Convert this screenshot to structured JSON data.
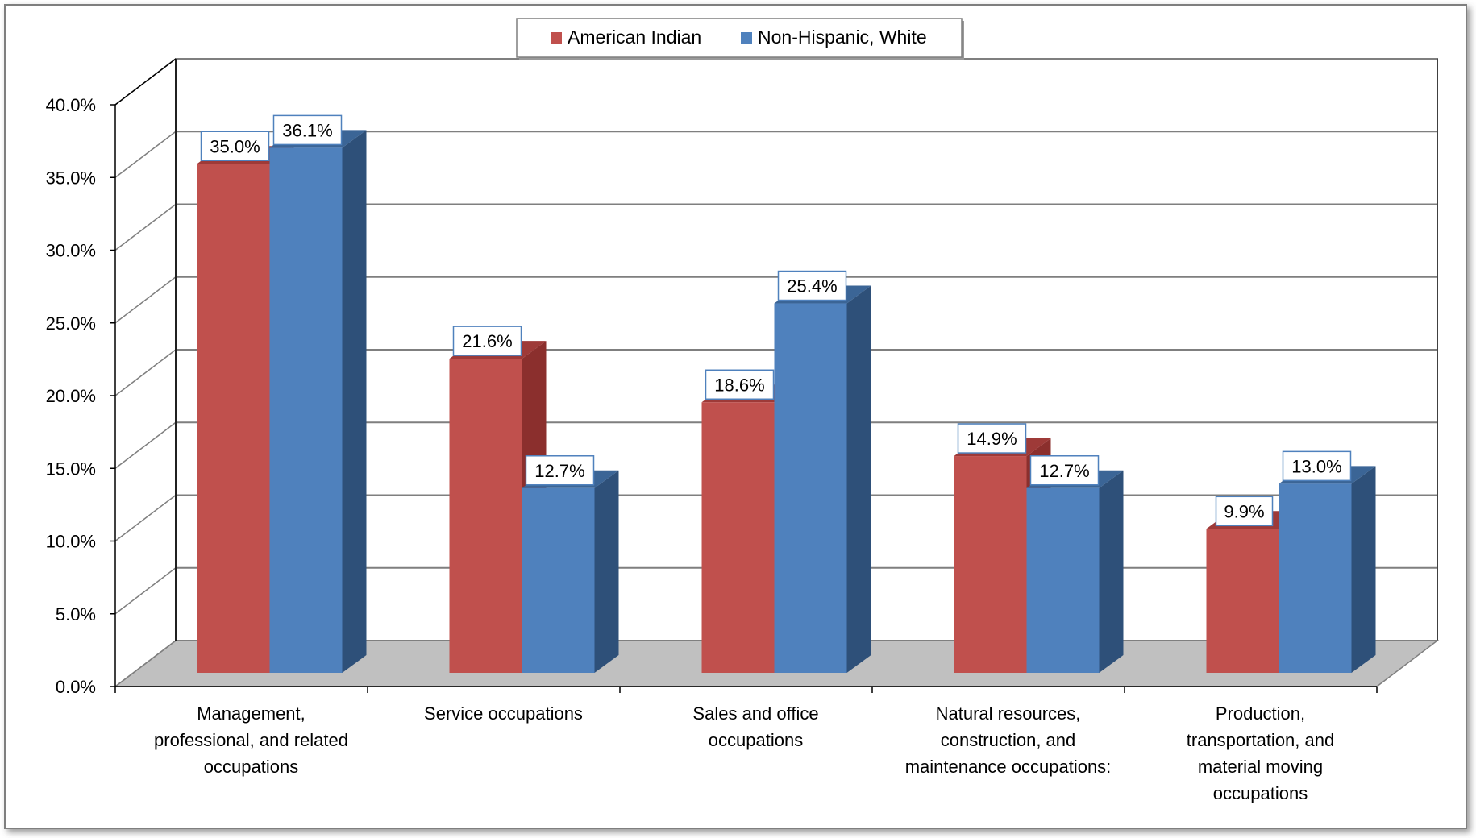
{
  "chart_data": {
    "type": "bar",
    "title": "",
    "xlabel": "",
    "ylabel": "",
    "ylim": [
      0,
      40
    ],
    "y_tick_step": 5,
    "y_tick_format": "percent_1dp",
    "grid": true,
    "three_d": true,
    "legend_position": "top",
    "categories": [
      [
        "Management,",
        "professional, and related",
        "occupations"
      ],
      [
        "Service occupations"
      ],
      [
        "Sales and office",
        "occupations"
      ],
      [
        "Natural resources,",
        "construction, and",
        "maintenance occupations:"
      ],
      [
        "Production,",
        "transportation, and",
        "material moving",
        "occupations"
      ]
    ],
    "series": [
      {
        "name": "American Indian",
        "color": "#C0504D",
        "side_color": "#8B2F2D",
        "top_color": "#9E3A38",
        "values": [
          35.0,
          21.6,
          18.6,
          14.9,
          9.9
        ],
        "data_labels": [
          "35.0%",
          "21.6%",
          "18.6%",
          "14.9%",
          "9.9%"
        ]
      },
      {
        "name": "Non-Hispanic, White",
        "color": "#4F81BD",
        "side_color": "#2E5079",
        "top_color": "#3B6596",
        "values": [
          36.1,
          12.7,
          25.4,
          12.7,
          13.0
        ],
        "data_labels": [
          "36.1%",
          "12.7%",
          "25.4%",
          "12.7%",
          "13.0%"
        ]
      }
    ],
    "y_tick_labels": [
      "0.0%",
      "5.0%",
      "10.0%",
      "15.0%",
      "20.0%",
      "25.0%",
      "30.0%",
      "35.0%",
      "40.0%"
    ]
  }
}
